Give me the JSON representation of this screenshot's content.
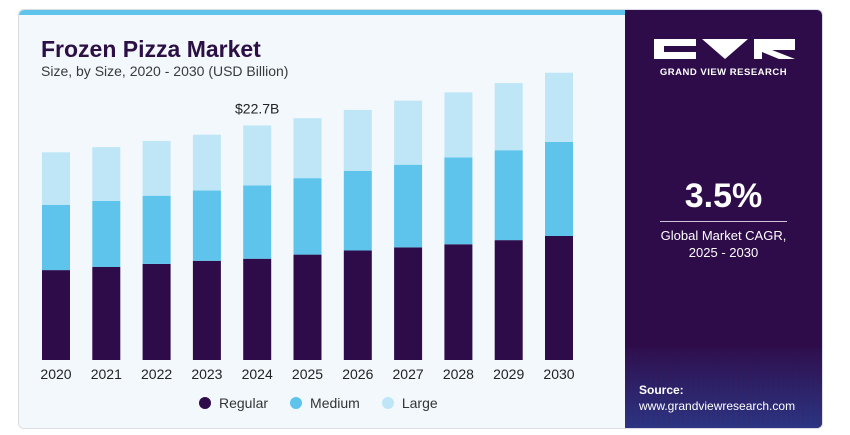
{
  "header": {
    "title": "Frozen Pizza Market",
    "subtitle": "Size, by Size, 2020 - 2030 (USD Billion)"
  },
  "annotation": {
    "label": "$22.7B",
    "category": "2024"
  },
  "chart_data": {
    "type": "bar",
    "stacked": true,
    "title": "Frozen Pizza Market",
    "subtitle": "Size, by Size, 2020 - 2030 (USD Billion)",
    "categories": [
      "2020",
      "2021",
      "2022",
      "2023",
      "2024",
      "2025",
      "2026",
      "2027",
      "2028",
      "2029",
      "2030"
    ],
    "series": [
      {
        "name": "Regular",
        "color": "#2e0c4a",
        "values": [
          8.7,
          9.0,
          9.3,
          9.6,
          9.8,
          10.2,
          10.6,
          10.9,
          11.2,
          11.6,
          12.0
        ]
      },
      {
        "name": "Medium",
        "color": "#5ec4ec",
        "values": [
          6.3,
          6.4,
          6.6,
          6.8,
          7.1,
          7.4,
          7.7,
          8.0,
          8.4,
          8.7,
          9.1
        ]
      },
      {
        "name": "Large",
        "color": "#bfe6f7",
        "values": [
          5.1,
          5.2,
          5.3,
          5.4,
          5.8,
          5.8,
          5.9,
          6.2,
          6.3,
          6.5,
          6.7
        ]
      }
    ],
    "ylim": [
      0,
      30
    ],
    "grid": false,
    "legend_position": "bottom"
  },
  "legend": {
    "items": [
      {
        "label": "Regular",
        "color": "#2e0c4a"
      },
      {
        "label": "Medium",
        "color": "#5ec4ec"
      },
      {
        "label": "Large",
        "color": "#bfe6f7"
      }
    ]
  },
  "sidebar": {
    "brand": "GRAND VIEW RESEARCH",
    "logo_icon": "gvr-logo-icon",
    "cagr_value": "3.5%",
    "cagr_label": "Global Market CAGR, 2025 - 2030",
    "source_title": "Source:",
    "source_url": "www.grandviewresearch.com"
  },
  "colors": {
    "accent": "#5ec4ec",
    "brand_dark": "#2e0c4a"
  }
}
